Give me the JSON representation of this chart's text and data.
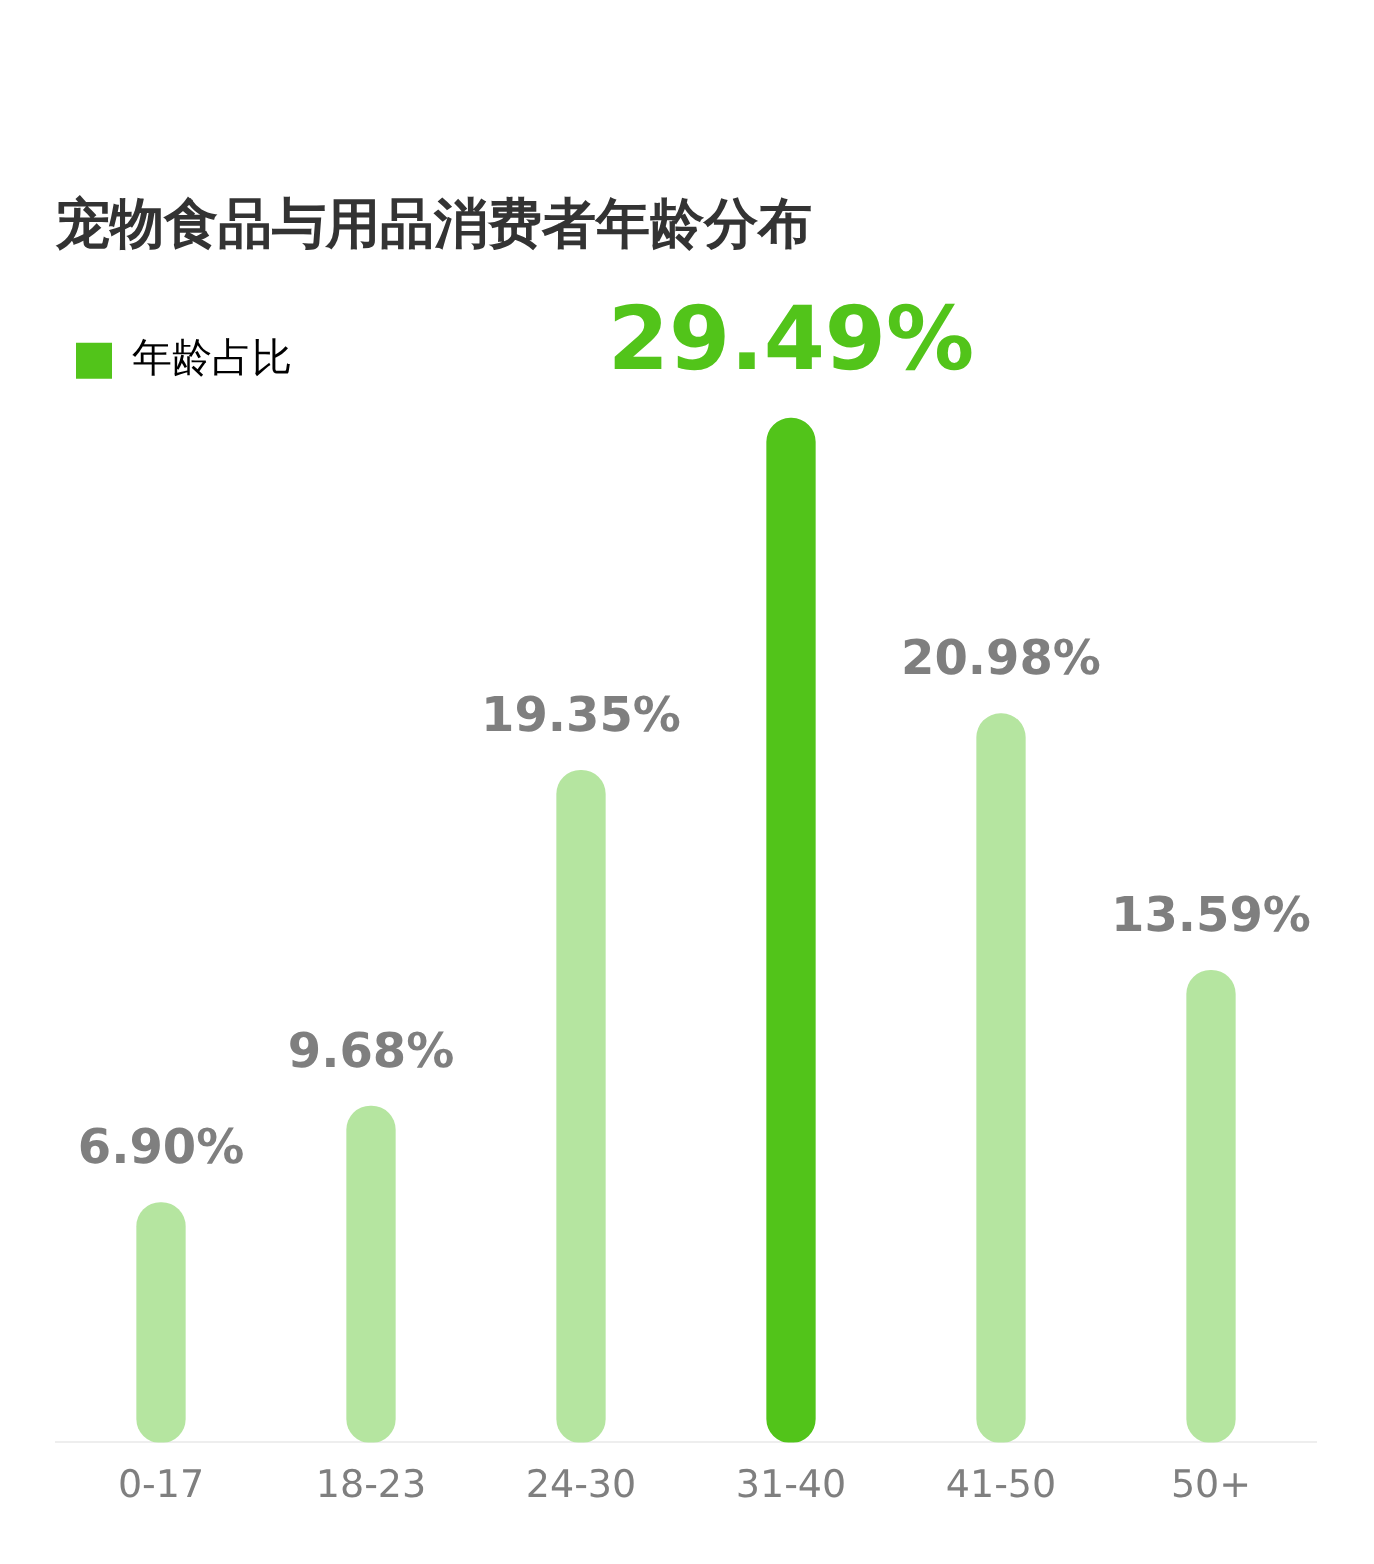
{
  "chart_data": {
    "type": "bar",
    "title": "宠物食品与用品消费者年龄分布",
    "categories": [
      "0-17",
      "18-23",
      "24-30",
      "31-40",
      "41-50",
      "50+"
    ],
    "series": [
      {
        "name": "年龄占比",
        "color": "#52c41a",
        "colors": [
          "#b5e5a0",
          "#b5e5a0",
          "#b5e5a0",
          "#52c41a",
          "#b5e5a0",
          "#b5e5a0"
        ],
        "values": [
          6.9,
          9.68,
          19.35,
          29.49,
          20.98,
          13.59
        ],
        "value_labels": [
          "6.90%",
          "9.68%",
          "19.35%",
          "29.49%",
          "20.98%",
          "13.59%"
        ]
      }
    ],
    "legend": "top left"
  }
}
